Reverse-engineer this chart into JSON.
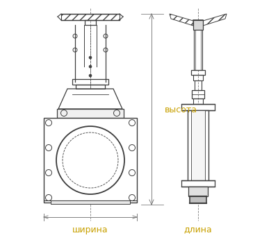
{
  "bg_color": "#ffffff",
  "line_color": "#3c3c3c",
  "dim_color": "#c8a000",
  "dim_line_color": "#808080",
  "text_ширина": "ширина",
  "text_длина": "длина",
  "text_высота": "высота",
  "font_size_label": 9,
  "fig_width": 4.0,
  "fig_height": 3.46,
  "dpi": 100
}
